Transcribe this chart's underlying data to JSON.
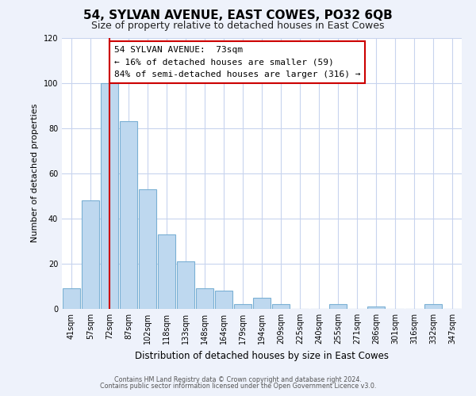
{
  "title": "54, SYLVAN AVENUE, EAST COWES, PO32 6QB",
  "subtitle": "Size of property relative to detached houses in East Cowes",
  "xlabel": "Distribution of detached houses by size in East Cowes",
  "ylabel": "Number of detached properties",
  "bar_labels": [
    "41sqm",
    "57sqm",
    "72sqm",
    "87sqm",
    "102sqm",
    "118sqm",
    "133sqm",
    "148sqm",
    "164sqm",
    "179sqm",
    "194sqm",
    "209sqm",
    "225sqm",
    "240sqm",
    "255sqm",
    "271sqm",
    "286sqm",
    "301sqm",
    "316sqm",
    "332sqm",
    "347sqm"
  ],
  "bar_heights": [
    9,
    48,
    100,
    83,
    53,
    33,
    21,
    9,
    8,
    2,
    5,
    2,
    0,
    0,
    2,
    0,
    1,
    0,
    0,
    2,
    0
  ],
  "bar_color": "#bed8ef",
  "bar_edge_color": "#7ab0d4",
  "highlight_bar_index": 2,
  "highlight_line_color": "#cc0000",
  "ylim": [
    0,
    120
  ],
  "yticks": [
    0,
    20,
    40,
    60,
    80,
    100,
    120
  ],
  "annotation_title": "54 SYLVAN AVENUE:  73sqm",
  "annotation_line1": "← 16% of detached houses are smaller (59)",
  "annotation_line2": "84% of semi-detached houses are larger (316) →",
  "footer_line1": "Contains HM Land Registry data © Crown copyright and database right 2024.",
  "footer_line2": "Contains public sector information licensed under the Open Government Licence v3.0.",
  "background_color": "#eef2fb",
  "plot_background_color": "#ffffff",
  "grid_color": "#c8d4ee"
}
